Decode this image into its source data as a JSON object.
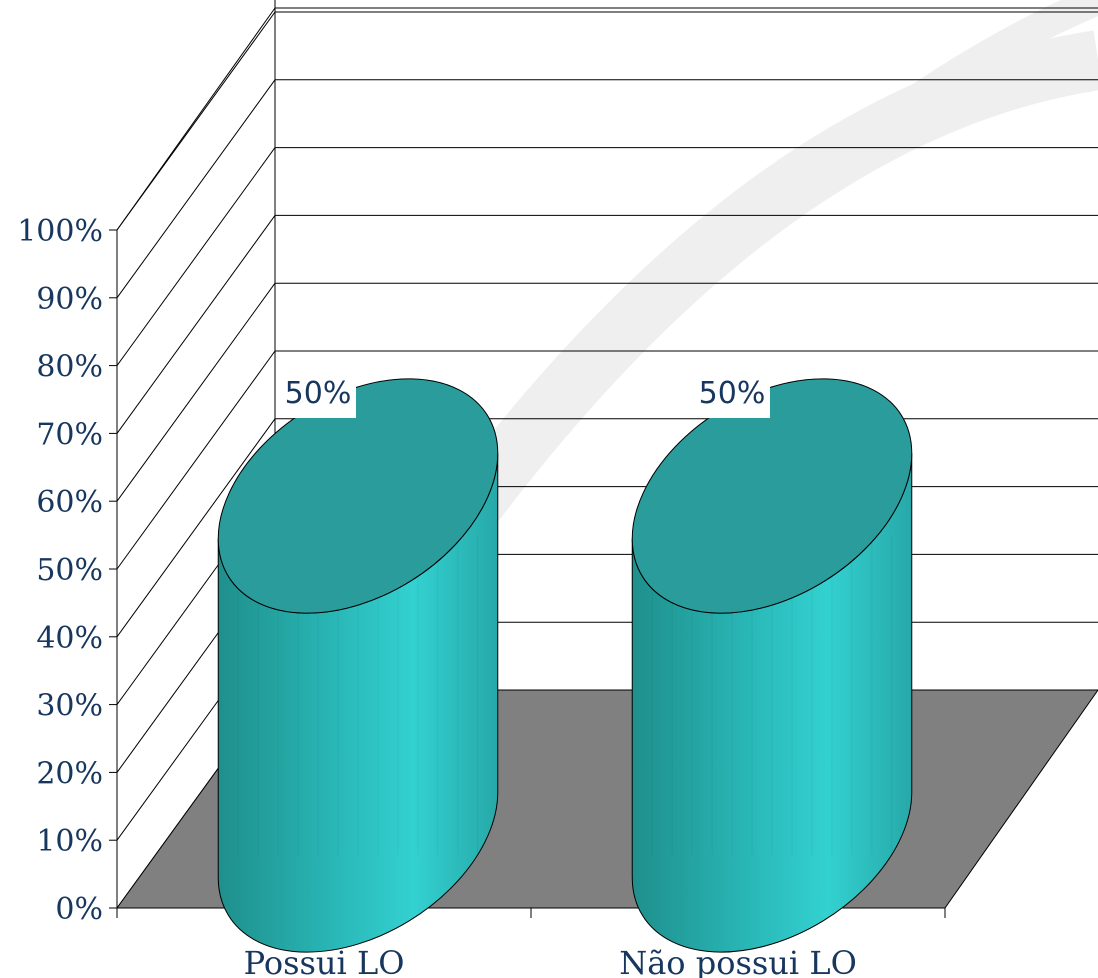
{
  "chart_data": {
    "type": "bar",
    "subtype": "3d-cylinder",
    "categories": [
      "Possui LO",
      "Não possui LO"
    ],
    "values": [
      50,
      50
    ],
    "data_labels": [
      "50%",
      "50%"
    ],
    "y_ticks": [
      "0%",
      "10%",
      "20%",
      "30%",
      "40%",
      "50%",
      "60%",
      "70%",
      "80%",
      "90%",
      "100%"
    ],
    "ylim": [
      0,
      100
    ],
    "y_unit": "%",
    "grid": true,
    "legend": "none",
    "title": "",
    "xlabel": "",
    "ylabel": "",
    "colors": {
      "bar_side_dark": "#1f8f8c",
      "bar_side_light": "#33d1d1",
      "bar_top": "#2a9c9c",
      "floor": "#808080",
      "gridline": "#000000",
      "text": "#17375e"
    }
  }
}
